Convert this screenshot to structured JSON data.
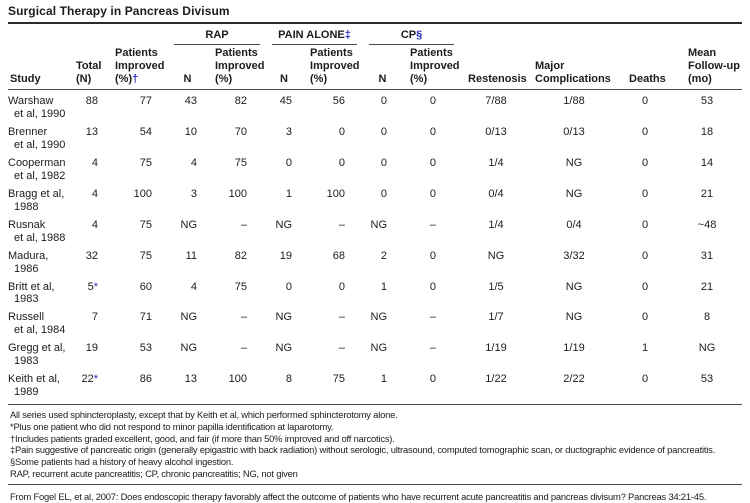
{
  "accent_color": "#2626b8",
  "title": "Surgical Therapy in Pancreas Divisum",
  "table": {
    "group_headers": [
      {
        "label": "RAP",
        "mark": ""
      },
      {
        "label": "PAIN ALONE",
        "mark": "‡"
      },
      {
        "label": "CP",
        "mark": "§"
      }
    ],
    "columns": [
      {
        "key": "study",
        "lines": [
          "Study"
        ],
        "mark": ""
      },
      {
        "key": "total",
        "lines": [
          "Total",
          "(N)"
        ],
        "mark": ""
      },
      {
        "key": "improved",
        "lines": [
          "Patients",
          "Improved",
          "(%)"
        ],
        "mark": "†"
      },
      {
        "key": "rap_n",
        "lines": [
          "N"
        ],
        "mark": ""
      },
      {
        "key": "rap_improved",
        "lines": [
          "Patients",
          "Improved",
          "(%)"
        ],
        "mark": ""
      },
      {
        "key": "pain_n",
        "lines": [
          "N"
        ],
        "mark": ""
      },
      {
        "key": "pain_improved",
        "lines": [
          "Patients",
          "Improved",
          "(%)"
        ],
        "mark": ""
      },
      {
        "key": "cp_n",
        "lines": [
          "N"
        ],
        "mark": ""
      },
      {
        "key": "cp_improved",
        "lines": [
          "Patients",
          "Improved",
          "(%)"
        ],
        "mark": ""
      },
      {
        "key": "restenosis",
        "lines": [
          "Restenosis"
        ],
        "mark": ""
      },
      {
        "key": "major",
        "lines": [
          "Major",
          "Complications"
        ],
        "mark": ""
      },
      {
        "key": "deaths",
        "lines": [
          "Deaths"
        ],
        "mark": ""
      },
      {
        "key": "followup",
        "lines": [
          "Mean",
          "Follow-up",
          "(mo)"
        ],
        "mark": ""
      }
    ],
    "rows": [
      {
        "study": [
          "Warshaw",
          "et al, 1990"
        ],
        "total": "88",
        "total_mark": "",
        "improved": "77",
        "rap_n": "43",
        "rap_improved": "82",
        "pain_n": "45",
        "pain_improved": "56",
        "cp_n": "0",
        "cp_improved": "0",
        "restenosis": "7/88",
        "major": "1/88",
        "deaths": "0",
        "followup": "53"
      },
      {
        "study": [
          "Brenner",
          "et al, 1990"
        ],
        "total": "13",
        "total_mark": "",
        "improved": "54",
        "rap_n": "10",
        "rap_improved": "70",
        "pain_n": "3",
        "pain_improved": "0",
        "cp_n": "0",
        "cp_improved": "0",
        "restenosis": "0/13",
        "major": "0/13",
        "deaths": "0",
        "followup": "18"
      },
      {
        "study": [
          "Cooperman",
          "et al, 1982"
        ],
        "total": "4",
        "total_mark": "",
        "improved": "75",
        "rap_n": "4",
        "rap_improved": "75",
        "pain_n": "0",
        "pain_improved": "0",
        "cp_n": "0",
        "cp_improved": "0",
        "restenosis": "1/4",
        "major": "NG",
        "deaths": "0",
        "followup": "14"
      },
      {
        "study": [
          "Bragg et al,",
          "1988"
        ],
        "total": "4",
        "total_mark": "",
        "improved": "100",
        "rap_n": "3",
        "rap_improved": "100",
        "pain_n": "1",
        "pain_improved": "100",
        "cp_n": "0",
        "cp_improved": "0",
        "restenosis": "0/4",
        "major": "NG",
        "deaths": "0",
        "followup": "21"
      },
      {
        "study": [
          "Rusnak",
          "et al, 1988"
        ],
        "total": "4",
        "total_mark": "",
        "improved": "75",
        "rap_n": "NG",
        "rap_improved": "–",
        "pain_n": "NG",
        "pain_improved": "–",
        "cp_n": "NG",
        "cp_improved": "–",
        "restenosis": "1/4",
        "major": "0/4",
        "deaths": "0",
        "followup": "~48"
      },
      {
        "study": [
          "Madura,",
          "1986"
        ],
        "total": "32",
        "total_mark": "",
        "improved": "75",
        "rap_n": "11",
        "rap_improved": "82",
        "pain_n": "19",
        "pain_improved": "68",
        "cp_n": "2",
        "cp_improved": "0",
        "restenosis": "NG",
        "major": "3/32",
        "deaths": "0",
        "followup": "31"
      },
      {
        "study": [
          "Britt et al,",
          "1983"
        ],
        "total": "5",
        "total_mark": "*",
        "improved": "60",
        "rap_n": "4",
        "rap_improved": "75",
        "pain_n": "0",
        "pain_improved": "0",
        "cp_n": "1",
        "cp_improved": "0",
        "restenosis": "1/5",
        "major": "NG",
        "deaths": "0",
        "followup": "21"
      },
      {
        "study": [
          "Russell",
          "et al, 1984"
        ],
        "total": "7",
        "total_mark": "",
        "improved": "71",
        "rap_n": "NG",
        "rap_improved": "–",
        "pain_n": "NG",
        "pain_improved": "–",
        "cp_n": "NG",
        "cp_improved": "–",
        "restenosis": "1/7",
        "major": "NG",
        "deaths": "0",
        "followup": "8"
      },
      {
        "study": [
          "Gregg et al,",
          "1983"
        ],
        "total": "19",
        "total_mark": "",
        "improved": "53",
        "rap_n": "NG",
        "rap_improved": "–",
        "pain_n": "NG",
        "pain_improved": "–",
        "cp_n": "NG",
        "cp_improved": "–",
        "restenosis": "1/19",
        "major": "1/19",
        "deaths": "1",
        "followup": "NG"
      },
      {
        "study": [
          "Keith et al,",
          "1989"
        ],
        "total": "22",
        "total_mark": "*",
        "improved": "86",
        "rap_n": "13",
        "rap_improved": "100",
        "pain_n": "8",
        "pain_improved": "75",
        "cp_n": "1",
        "cp_improved": "0",
        "restenosis": "1/22",
        "major": "2/22",
        "deaths": "0",
        "followup": "53"
      }
    ]
  },
  "footnotes": [
    "All series used sphincteroplasty, except that by Keith et al, which performed sphincterotomy alone.",
    "*Plus one patient who did not respond to minor papilla identification at laparotomy.",
    "†Includes patients graded excellent, good, and fair (if more than 50% improved and off narcotics).",
    "‡Pain suggestive of pancreatic origin (generally epigastric with back radiation) without serologic, ultrasound, computed tomographic scan, or ductographic evidence of pancreatitis.",
    "§Some patients had a history of heavy alcohol ingestion.",
    "RAP, recurrent acute pancreatitis; CP, chronic pancreatitis; NG, not given"
  ],
  "source": "From Fogel EL, et al, 2007: Does endoscopic therapy favorably affect the outcome of patients who have recurrent acute pancreatitis and pancreas divisum? Pancreas 34:21-45."
}
